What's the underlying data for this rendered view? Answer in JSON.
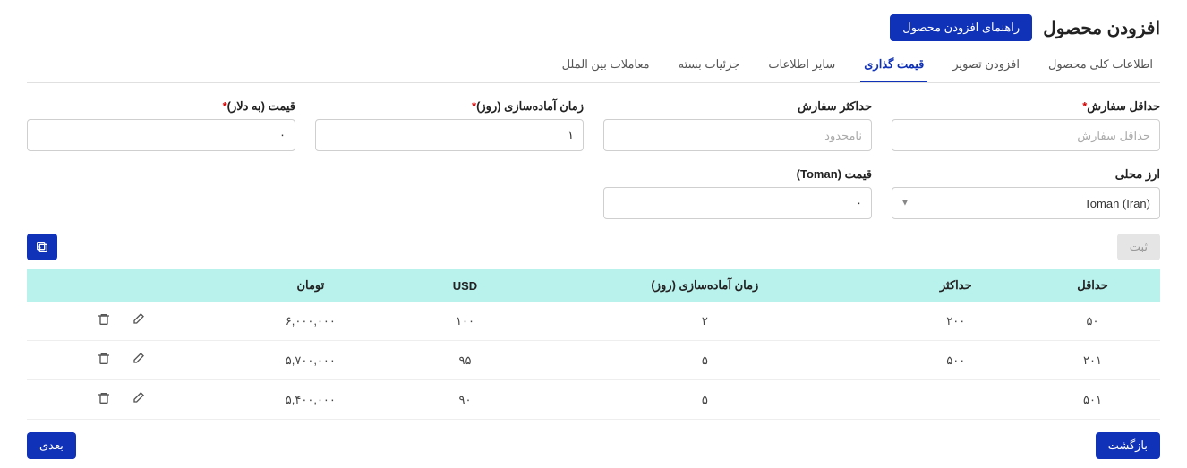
{
  "header": {
    "title": "افزودن محصول",
    "guide_button": "راهنمای افزودن محصول"
  },
  "tabs": [
    {
      "key": "general",
      "label": "اطلاعات کلی محصول",
      "active": false
    },
    {
      "key": "image",
      "label": "افزودن تصویر",
      "active": false
    },
    {
      "key": "pricing",
      "label": "قیمت گذاری",
      "active": true
    },
    {
      "key": "other",
      "label": "سایر اطلاعات",
      "active": false
    },
    {
      "key": "package",
      "label": "جزئیات بسته",
      "active": false
    },
    {
      "key": "intl",
      "label": "معاملات بین الملل",
      "active": false
    }
  ],
  "form": {
    "min_order": {
      "label": "حداقل سفارش",
      "required": true,
      "placeholder": "حداقل سفارش",
      "value": ""
    },
    "max_order": {
      "label": "حداکثر سفارش",
      "required": false,
      "placeholder": "نامحدود",
      "value": ""
    },
    "lead_time": {
      "label": "زمان آماده‌سازی (روز)",
      "required": true,
      "placeholder": "",
      "value": "۱"
    },
    "price_usd": {
      "label": "قیمت (به دلار)",
      "required": true,
      "placeholder": "",
      "value": "۰"
    },
    "local_currency": {
      "label": "ارز محلی",
      "value": "Toman (Iran)"
    },
    "price_local": {
      "label": "قیمت (Toman)",
      "value": "۰"
    },
    "submit_label": "ثبت"
  },
  "table": {
    "headers": {
      "min": "حداقل",
      "max": "حداکثر",
      "lead": "زمان آماده‌سازی (روز)",
      "usd": "USD",
      "toman": "تومان",
      "actions": ""
    },
    "rows": [
      {
        "min": "۵۰",
        "max": "۲۰۰",
        "lead": "۲",
        "usd": "۱۰۰",
        "toman": "۶,۰۰۰,۰۰۰"
      },
      {
        "min": "۲۰۱",
        "max": "۵۰۰",
        "lead": "۵",
        "usd": "۹۵",
        "toman": "۵,۷۰۰,۰۰۰"
      },
      {
        "min": "۵۰۱",
        "max": "",
        "lead": "۵",
        "usd": "۹۰",
        "toman": "۵,۴۰۰,۰۰۰"
      }
    ]
  },
  "footer": {
    "back": "بازگشت",
    "next": "بعدی"
  },
  "colors": {
    "primary": "#1032b8",
    "table_header_bg": "#b9f1ec",
    "border": "#cfcfcf",
    "required": "#d40000"
  }
}
